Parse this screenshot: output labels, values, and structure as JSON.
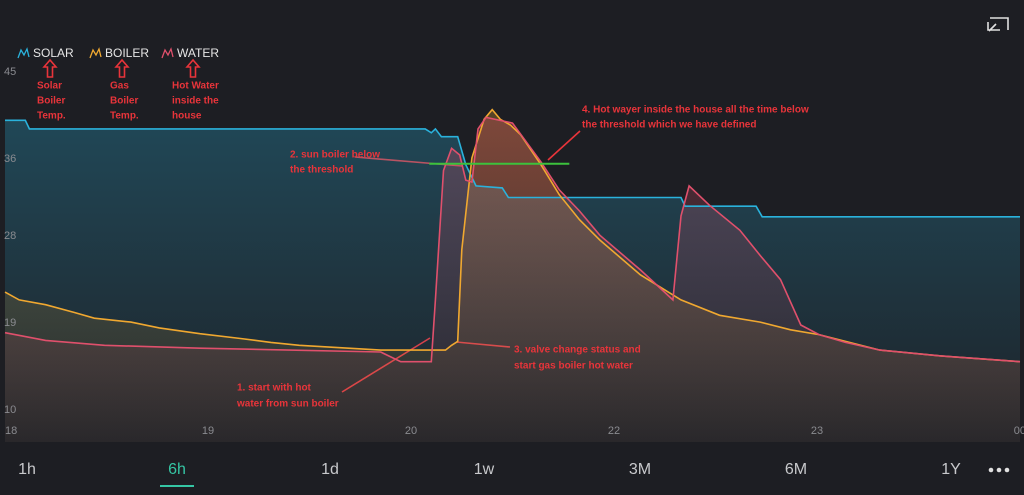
{
  "chart_data": {
    "type": "line",
    "xlim": [
      18,
      23
    ],
    "xticks": [
      18,
      19,
      20,
      {
        "value": 21,
        "label": "22"
      },
      {
        "value": 22,
        "label": "23"
      },
      {
        "value": 23,
        "label": "00"
      }
    ],
    "ylim": [
      10,
      45
    ],
    "yticks": [
      10,
      19,
      28,
      36,
      45
    ],
    "series": [
      {
        "name": "SOLAR",
        "color": "#2ab2dc",
        "x": [
          18,
          18.1,
          18.12,
          20.07,
          20.1,
          20.12,
          20.15,
          20.23,
          20.27,
          20.32,
          20.45,
          20.48,
          21.33,
          21.35,
          21.7,
          21.73,
          23
        ],
        "values": [
          39.9,
          39.9,
          39.0,
          39.0,
          38.6,
          39.0,
          38.2,
          38.2,
          35.3,
          33.1,
          32.9,
          31.9,
          31.9,
          31.0,
          31.0,
          29.9,
          29.9
        ]
      },
      {
        "name": "BOILER",
        "color": "#f0a830",
        "x": [
          18,
          18.07,
          18.2,
          18.34,
          18.44,
          18.62,
          18.76,
          18.96,
          19.16,
          19.31,
          19.45,
          19.85,
          20.17,
          20.2,
          20.23,
          20.25,
          20.3,
          20.36,
          20.4,
          20.44,
          20.49,
          20.54,
          20.64,
          20.73,
          20.83,
          20.93,
          21.13,
          21.33,
          21.52,
          21.72,
          21.87,
          22.01,
          22.16,
          22.31,
          22.61,
          23
        ],
        "values": [
          22.1,
          21.3,
          20.8,
          20.0,
          19.4,
          19.0,
          18.4,
          17.8,
          17.3,
          16.9,
          16.6,
          16.1,
          16.1,
          16.6,
          17.0,
          26.5,
          36.0,
          40.0,
          41.0,
          40.0,
          39.4,
          38.4,
          35.3,
          32.2,
          29.6,
          27.5,
          23.9,
          21.3,
          19.7,
          19.0,
          18.2,
          17.7,
          16.9,
          16.1,
          15.5,
          14.9
        ]
      },
      {
        "name": "WATER",
        "color": "#e0506c",
        "x": [
          18,
          18.2,
          18.49,
          18.96,
          19.85,
          19.95,
          20.1,
          20.12,
          20.16,
          20.2,
          20.24,
          20.27,
          20.3,
          20.33,
          20.37,
          20.5,
          20.64,
          20.73,
          20.83,
          20.93,
          21.13,
          21.29,
          21.33,
          21.37,
          21.47,
          21.62,
          21.72,
          21.82,
          21.92,
          22.01,
          22.14,
          22.31,
          22.61,
          23
        ],
        "values": [
          17.9,
          17.1,
          16.6,
          16.3,
          15.9,
          14.9,
          14.9,
          21.3,
          34.7,
          37.0,
          36.3,
          33.7,
          33.5,
          39.0,
          40.2,
          39.6,
          35.6,
          32.7,
          30.5,
          28.0,
          24.4,
          21.3,
          30.0,
          33.1,
          31.1,
          28.5,
          25.9,
          23.4,
          18.7,
          17.7,
          16.9,
          16.1,
          15.5,
          14.9
        ]
      }
    ],
    "threshold": {
      "x": [
        20.09,
        20.78
      ],
      "value": 35.4,
      "color": "#3cc23c"
    },
    "annotations": [
      [
        "Solar",
        "Boiler",
        "Temp."
      ],
      [
        "Gas",
        "Boiler",
        "Temp."
      ],
      [
        "Hot Water",
        "inside the",
        "house"
      ],
      [
        "1. start with hot",
        "water from sun boiler"
      ],
      [
        "2. sun boiler below",
        "the threshold"
      ],
      [
        "3. valve change status and",
        "start gas boiler hot water"
      ],
      [
        "4. Hot wayer inside the house all the time below",
        "the threshold which we have defined"
      ]
    ],
    "ranges": [
      "1h",
      "6h",
      "1d",
      "1w",
      "3M",
      "6M",
      "1Y"
    ],
    "selected_range": "6h"
  }
}
